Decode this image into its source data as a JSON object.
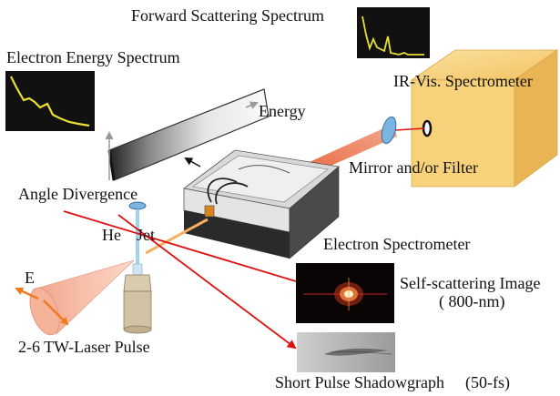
{
  "labels": {
    "forward_scattering_spectrum": "Forward Scattering Spectrum",
    "electron_energy_spectrum": "Electron Energy Spectrum",
    "ir_vis_spectrometer": "IR-Vis. Spectrometer",
    "energy": "Energy",
    "mirror_filter": "Mirror and/or Filter",
    "angle_divergence": "Angle Divergence",
    "he": "He",
    "jet": "Jet",
    "electron_spectrometer": "Electron Spectrometer",
    "e_field": "E",
    "self_scattering_line1": "Self-scattering Image",
    "self_scattering_line2": "( 800-nm)",
    "laser_pulse": "2-6 TW-Laser Pulse",
    "shadowgraph": "Short Pulse Shadowgraph",
    "shadowgraph_duration": "(50-fs)"
  },
  "colors": {
    "laser_beam": "#e8623a",
    "red_arrow": "#e01010",
    "spectrometer_box": "#f7d27a",
    "trace_yellow": "#e8e030",
    "e_arrow": "#f07a20"
  },
  "insets": {
    "forward_scattering_trace": "forward-scattering-plot",
    "electron_energy_trace": "electron-energy-plot"
  }
}
